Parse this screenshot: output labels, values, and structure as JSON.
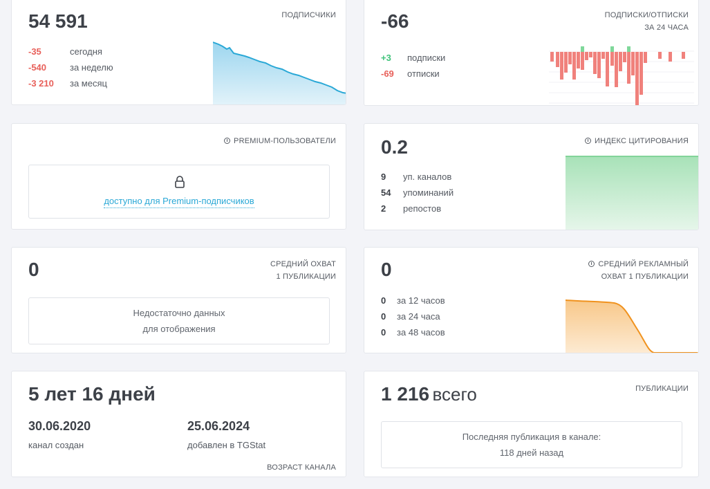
{
  "subscribers": {
    "value": "54 591",
    "caption": "подписчики",
    "changes": [
      {
        "value": "-35",
        "label": "сегодня"
      },
      {
        "value": "-540",
        "label": "за неделю"
      },
      {
        "value": "-3 210",
        "label": "за месяц"
      }
    ],
    "spark_color": "#2aa8d6"
  },
  "subs_unsubs": {
    "value": "-66",
    "caption_line1": "подписки/отписки",
    "caption_line2": "за 24 часа",
    "rows": [
      {
        "value": "+3",
        "label": "подписки"
      },
      {
        "value": "-69",
        "label": "отписки"
      }
    ],
    "pos_color": "#7fd89a",
    "neg_color": "#f0817c"
  },
  "premium": {
    "caption": "premium-пользователи",
    "locked_text": "доступно для Premium-подписчиков"
  },
  "citation": {
    "value": "0.2",
    "caption": "индекс цитирования",
    "rows": [
      {
        "value": "9",
        "label": "уп. каналов"
      },
      {
        "value": "54",
        "label": "упоминаний"
      },
      {
        "value": "2",
        "label": "репостов"
      }
    ],
    "area_color": "#7fd89a"
  },
  "reach": {
    "value": "0",
    "caption_line1": "средний охват",
    "caption_line2": "1 публикации",
    "empty_line1": "Недостаточно данных",
    "empty_line2": "для отображения"
  },
  "ad_reach": {
    "value": "0",
    "caption_line1": "средний рекламный",
    "caption_line2": "охват 1 публикации",
    "rows": [
      {
        "value": "0",
        "label": "за 12 часов"
      },
      {
        "value": "0",
        "label": "за 24 часа"
      },
      {
        "value": "0",
        "label": "за 48 часов"
      }
    ],
    "area_color": "#f0921e"
  },
  "age": {
    "value": "5 лет 16 дней",
    "created_date": "30.06.2020",
    "created_label": "канал создан",
    "added_date": "25.06.2024",
    "added_label": "добавлен в TGStat",
    "caption": "возраст канала"
  },
  "publications": {
    "count": "1 216",
    "count_suffix": "всего",
    "caption": "публикации",
    "last_line1": "Последняя публикация в канале:",
    "last_line2": "118 дней назад"
  }
}
